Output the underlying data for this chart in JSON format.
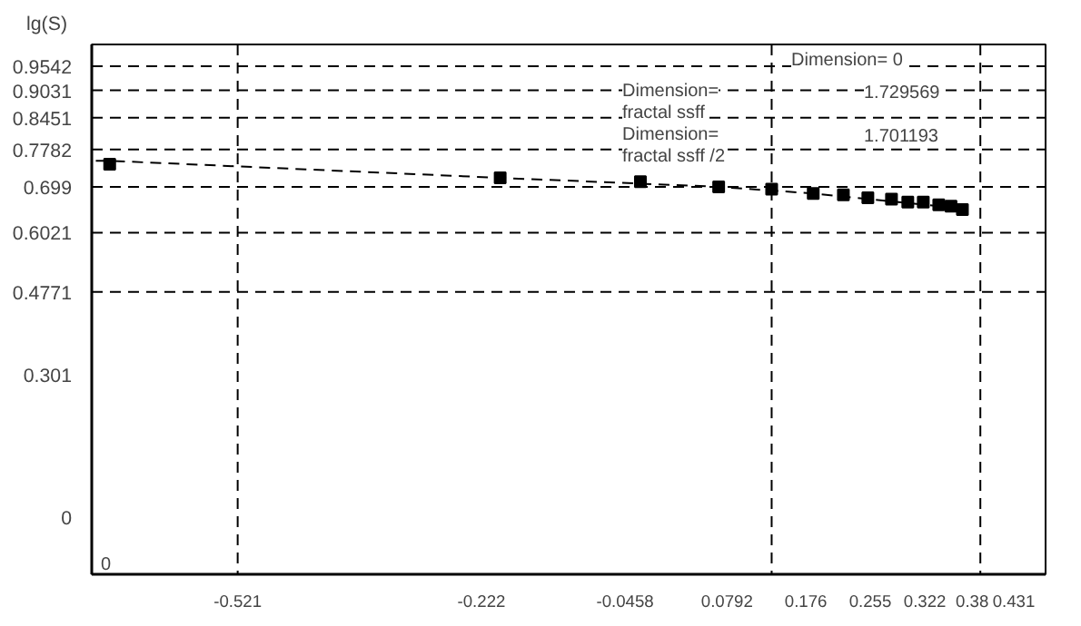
{
  "chart_data": {
    "type": "scatter",
    "ylabel": "lg(S)",
    "xlim": [
      -0.7,
      0.47
    ],
    "ylim": [
      -0.12,
      1.0
    ],
    "xticks": [
      -0.521,
      -0.222,
      -0.0458,
      0.0792,
      0.176,
      0.255,
      0.322,
      0.38,
      0.431
    ],
    "yticks": [
      0,
      0.301,
      0.4771,
      0.6021,
      0.699,
      0.7782,
      0.8451,
      0.9031,
      0.9542
    ],
    "series": [
      {
        "color": "#000000",
        "marker": "square",
        "x": [
          -0.678,
          -0.199,
          -0.027,
          0.069,
          0.134,
          0.185,
          0.222,
          0.252,
          0.281,
          0.301,
          0.32,
          0.339,
          0.354,
          0.368
        ],
        "values": [
          0.747,
          0.718,
          0.71,
          0.699,
          0.694,
          0.685,
          0.682,
          0.676,
          0.673,
          0.667,
          0.667,
          0.661,
          0.658,
          0.651
        ]
      },
      {
        "type": "line",
        "color": "#000000",
        "line_style": "dashed",
        "x": [
          -0.695,
          -0.678,
          -0.199,
          0.069,
          0.185,
          0.368
        ],
        "values": [
          0.754,
          0.754,
          0.718,
          0.699,
          0.685,
          0.653
        ]
      }
    ],
    "ref_lines": [
      {
        "axis": "y",
        "value": 0.4771,
        "line_style": "dashed",
        "color": "#000000"
      },
      {
        "axis": "y",
        "value": 0.6021,
        "line_style": "dashed",
        "color": "#000000"
      },
      {
        "axis": "y",
        "value": 0.699,
        "line_style": "dashed",
        "color": "#000000"
      },
      {
        "axis": "y",
        "value": 0.7782,
        "line_style": "dashed",
        "color": "#000000"
      },
      {
        "axis": "y",
        "value": 0.8451,
        "line_style": "dashed",
        "color": "#000000"
      },
      {
        "axis": "y",
        "value": 0.9031,
        "line_style": "dashed",
        "color": "#000000"
      },
      {
        "axis": "y",
        "value": 0.9542,
        "line_style": "dashed",
        "color": "#000000"
      },
      {
        "axis": "x",
        "value": -0.521,
        "line_style": "dashed",
        "color": "#000000"
      },
      {
        "axis": "x",
        "value": 0.134,
        "line_style": "dashed",
        "color": "#000000"
      },
      {
        "axis": "x",
        "value": 0.39,
        "line_style": "dashed",
        "color": "#000000"
      }
    ],
    "annotations": [
      "Dimension= 0",
      "Dimension=",
      "1.729569",
      "fractal ssff",
      "Dimension=",
      "1.701193",
      "fractal ssff /2",
      "0"
    ],
    "grid": false
  }
}
